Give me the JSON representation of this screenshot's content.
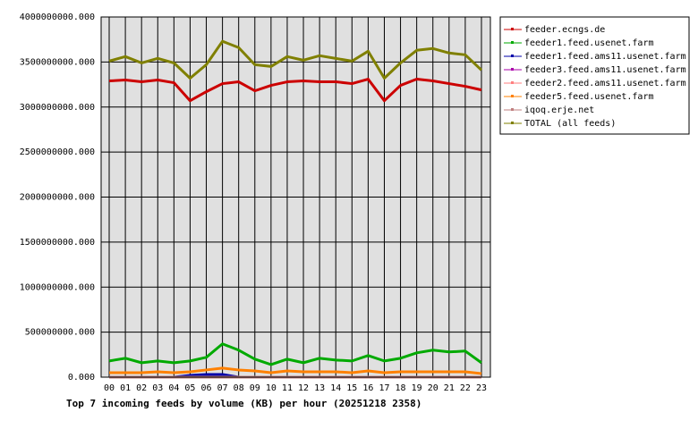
{
  "chart_data": {
    "type": "line",
    "title": "Top 7 incoming feeds by volume (KB) per hour (20251218 2358)",
    "categories": [
      "00",
      "01",
      "02",
      "03",
      "04",
      "05",
      "06",
      "07",
      "08",
      "09",
      "10",
      "11",
      "12",
      "13",
      "14",
      "15",
      "16",
      "17",
      "18",
      "19",
      "20",
      "21",
      "22",
      "23"
    ],
    "ylim": [
      0,
      4000000000
    ],
    "yticks": [
      {
        "value": 0,
        "label": "0.000"
      },
      {
        "value": 500000000,
        "label": "500000000.000"
      },
      {
        "value": 1000000000,
        "label": "1000000000.000"
      },
      {
        "value": 1500000000,
        "label": "1500000000.000"
      },
      {
        "value": 2000000000,
        "label": "2000000000.000"
      },
      {
        "value": 2500000000,
        "label": "2500000000.000"
      },
      {
        "value": 3000000000,
        "label": "3000000000.000"
      },
      {
        "value": 3500000000,
        "label": "3500000000.000"
      },
      {
        "value": 4000000000,
        "label": "4000000000.000"
      }
    ],
    "grid": true,
    "legend": "right",
    "series": [
      {
        "name": "feeder.ecngs.de",
        "color": "#cc0000",
        "values": [
          3290000000,
          3300000000,
          3280000000,
          3300000000,
          3270000000,
          3070000000,
          3170000000,
          3260000000,
          3280000000,
          3180000000,
          3240000000,
          3280000000,
          3290000000,
          3280000000,
          3280000000,
          3260000000,
          3310000000,
          3070000000,
          3240000000,
          3310000000,
          3290000000,
          3260000000,
          3230000000,
          3190000000
        ]
      },
      {
        "name": "feeder1.feed.usenet.farm",
        "color": "#00aa00",
        "values": [
          180000000,
          210000000,
          160000000,
          180000000,
          160000000,
          180000000,
          220000000,
          370000000,
          300000000,
          200000000,
          140000000,
          200000000,
          160000000,
          210000000,
          190000000,
          180000000,
          240000000,
          180000000,
          210000000,
          270000000,
          300000000,
          280000000,
          290000000,
          160000000
        ]
      },
      {
        "name": "feeder1.feed.ams11.usenet.farm",
        "color": "#0000aa",
        "values": [
          0,
          0,
          0,
          0,
          0,
          20000000,
          30000000,
          30000000,
          0,
          0,
          0,
          0,
          0,
          0,
          0,
          0,
          0,
          0,
          0,
          0,
          0,
          0,
          0,
          0
        ]
      },
      {
        "name": "feeder3.feed.ams11.usenet.farm",
        "color": "#aa00aa",
        "values": [
          0,
          0,
          0,
          0,
          0,
          0,
          0,
          0,
          0,
          0,
          0,
          0,
          0,
          0,
          0,
          0,
          0,
          0,
          0,
          0,
          0,
          0,
          0,
          0
        ]
      },
      {
        "name": "feeder2.feed.ams11.usenet.farm",
        "color": "#ff7f7f",
        "values": [
          0,
          0,
          0,
          0,
          0,
          0,
          0,
          0,
          0,
          0,
          0,
          0,
          0,
          0,
          0,
          0,
          0,
          0,
          0,
          0,
          0,
          0,
          0,
          0
        ]
      },
      {
        "name": "feeder5.feed.usenet.farm",
        "color": "#ff8000",
        "values": [
          50000000,
          50000000,
          50000000,
          60000000,
          50000000,
          60000000,
          80000000,
          100000000,
          80000000,
          70000000,
          50000000,
          70000000,
          60000000,
          60000000,
          60000000,
          50000000,
          70000000,
          50000000,
          60000000,
          60000000,
          60000000,
          60000000,
          60000000,
          40000000
        ]
      },
      {
        "name": "iqoq.erje.net",
        "color": "#c08080",
        "values": [
          0,
          0,
          0,
          0,
          0,
          0,
          0,
          0,
          0,
          0,
          0,
          0,
          0,
          0,
          0,
          0,
          0,
          0,
          0,
          0,
          0,
          0,
          0,
          0
        ]
      },
      {
        "name": "TOTAL (all feeds)",
        "color": "#808000",
        "values": [
          3510000000,
          3560000000,
          3490000000,
          3540000000,
          3490000000,
          3320000000,
          3470000000,
          3730000000,
          3660000000,
          3470000000,
          3450000000,
          3560000000,
          3520000000,
          3570000000,
          3540000000,
          3510000000,
          3620000000,
          3320000000,
          3490000000,
          3630000000,
          3650000000,
          3600000000,
          3580000000,
          3410000000
        ]
      }
    ]
  }
}
